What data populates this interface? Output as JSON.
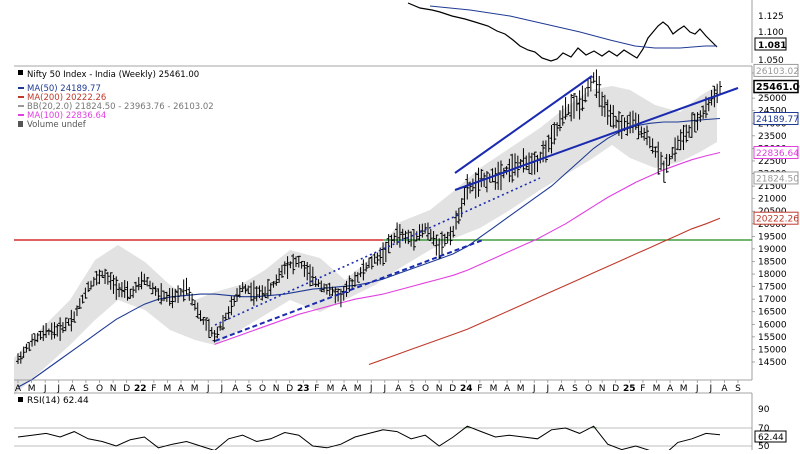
{
  "colors": {
    "price": "#000000",
    "ma50": "#1f3a93",
    "ma200": "#c0392b",
    "ma100": "#e040e0",
    "bb_band": "#d8d8d8",
    "trendline": "#1a2bb0",
    "horizontal_red": "#cc0000",
    "horizontal_green": "#1f8a1f",
    "rsi_fill": "#3c7a3c"
  },
  "top_panel": {
    "tick_labels": [
      "1.125",
      "1.100",
      "1.081",
      "1.050"
    ],
    "highlight_label": "1.081"
  },
  "legend": {
    "title": "Nifty 50 Index - India (Weekly) 25461.00",
    "items": [
      {
        "label": "MA(50) 24189.77",
        "color": "#1f3a93"
      },
      {
        "label": "MA(200) 20222.26",
        "color": "#c0392b"
      },
      {
        "label": "BB(20,2.0) 21824.50 - 23963.76 - 26103.02",
        "color": "#999999"
      },
      {
        "label": "MA(100) 22836.64",
        "color": "#e040e0"
      },
      {
        "label": "Volume undef",
        "color": "#555555"
      }
    ]
  },
  "right_axis": {
    "ticks": [
      "26000",
      "25000",
      "24500",
      "24000",
      "23500",
      "23000",
      "22500",
      "22000",
      "21500",
      "21000",
      "20500",
      "20000",
      "19500",
      "19000",
      "18500",
      "18000",
      "17500",
      "17000",
      "16500",
      "16000",
      "15500",
      "15000",
      "14500"
    ],
    "badges": [
      {
        "label": "26103.02",
        "value": 26103.02,
        "style": "outline",
        "color": "#999999"
      },
      {
        "label": "25461.00",
        "value": 25461.0,
        "style": "bold",
        "color": "#000000"
      },
      {
        "label": "24189.77",
        "value": 24189.77,
        "style": "outline",
        "color": "#1f3a93"
      },
      {
        "label": "22836.64",
        "value": 22836.64,
        "style": "outline",
        "color": "#e040e0"
      },
      {
        "label": "21824.50",
        "value": 21824.5,
        "style": "outline",
        "color": "#999999"
      },
      {
        "label": "20222.26",
        "value": 20222.26,
        "style": "outline",
        "color": "#c0392b"
      }
    ]
  },
  "x_axis": {
    "labels": [
      "A",
      "M",
      "J",
      "J",
      "A",
      "S",
      "O",
      "N",
      "D",
      "22",
      "F",
      "M",
      "A",
      "M",
      "J",
      "J",
      "A",
      "S",
      "O",
      "N",
      "D",
      "23",
      "F",
      "M",
      "A",
      "M",
      "J",
      "J",
      "A",
      "S",
      "O",
      "N",
      "D",
      "24",
      "F",
      "M",
      "A",
      "M",
      "J",
      "J",
      "A",
      "S",
      "O",
      "N",
      "D",
      "25",
      "F",
      "M",
      "A",
      "M",
      "J",
      "J",
      "A",
      "S"
    ]
  },
  "rsi_panel": {
    "legend": "RSI(14) 62.44",
    "ticks": [
      "90",
      "70",
      "62.44",
      "50"
    ],
    "value_label": "62.44"
  },
  "chart_data": {
    "type": "line",
    "title": "Nifty 50 Index - India (Weekly) 25461.00",
    "x": [
      "2021-04",
      "2021-05",
      "2021-06",
      "2021-07",
      "2021-08",
      "2021-09",
      "2021-10",
      "2021-11",
      "2021-12",
      "2022-01",
      "2022-02",
      "2022-03",
      "2022-04",
      "2022-05",
      "2022-06",
      "2022-07",
      "2022-08",
      "2022-09",
      "2022-10",
      "2022-11",
      "2022-12",
      "2023-01",
      "2023-02",
      "2023-03",
      "2023-04",
      "2023-05",
      "2023-06",
      "2023-07",
      "2023-08",
      "2023-09",
      "2023-10",
      "2023-11",
      "2023-12",
      "2024-01",
      "2024-02",
      "2024-03",
      "2024-04",
      "2024-05",
      "2024-06",
      "2024-07",
      "2024-08",
      "2024-09",
      "2024-10",
      "2024-11",
      "2024-12",
      "2025-01",
      "2025-02",
      "2025-03",
      "2025-04",
      "2025-05",
      "2025-06"
    ],
    "ylim": [
      14000,
      26500
    ],
    "series": [
      {
        "name": "Nifty 50 Index - India (Weekly)",
        "values": [
          14600,
          15300,
          15700,
          15800,
          16300,
          17500,
          18000,
          17500,
          17200,
          17800,
          17200,
          17000,
          17500,
          16300,
          15500,
          16500,
          17500,
          17200,
          17400,
          18300,
          18500,
          17800,
          17400,
          17100,
          17800,
          18400,
          18800,
          19600,
          19400,
          19800,
          19100,
          19700,
          21400,
          21700,
          21900,
          22200,
          22400,
          22500,
          23300,
          24500,
          24800,
          25800,
          24300,
          23900,
          24000,
          23300,
          22200,
          23200,
          23800,
          24600,
          25461
        ]
      },
      {
        "name": "MA(50) 24189.77",
        "values": [
          13500,
          13800,
          14200,
          14600,
          15000,
          15400,
          15800,
          16200,
          16500,
          16800,
          17000,
          17100,
          17150,
          17200,
          17200,
          17150,
          17100,
          17100,
          17150,
          17200,
          17300,
          17400,
          17450,
          17500,
          17550,
          17650,
          17800,
          18000,
          18200,
          18400,
          18600,
          18800,
          19100,
          19500,
          19900,
          20300,
          20700,
          21100,
          21500,
          22000,
          22500,
          23000,
          23400,
          23700,
          23900,
          24000,
          24050,
          24050,
          24100,
          24150,
          24189.77
        ]
      },
      {
        "name": "MA(100) 22836.64",
        "values": [
          null,
          null,
          null,
          null,
          null,
          null,
          null,
          null,
          null,
          null,
          null,
          null,
          null,
          null,
          15200,
          15400,
          15600,
          15800,
          16000,
          16200,
          16400,
          16550,
          16700,
          16850,
          17000,
          17100,
          17200,
          17350,
          17500,
          17650,
          17800,
          17950,
          18150,
          18400,
          18650,
          18900,
          19150,
          19400,
          19700,
          20000,
          20350,
          20700,
          21050,
          21350,
          21650,
          21900,
          22150,
          22350,
          22550,
          22700,
          22836.64
        ]
      },
      {
        "name": "MA(200) 20222.26",
        "values": [
          null,
          null,
          null,
          null,
          null,
          null,
          null,
          null,
          null,
          null,
          null,
          null,
          null,
          null,
          null,
          null,
          null,
          null,
          null,
          null,
          null,
          null,
          null,
          null,
          null,
          14400,
          14600,
          14800,
          15000,
          15200,
          15400,
          15600,
          15800,
          16050,
          16300,
          16550,
          16800,
          17050,
          17300,
          17550,
          17800,
          18050,
          18300,
          18550,
          18800,
          19050,
          19300,
          19550,
          19800,
          20000,
          20222.26
        ]
      }
    ],
    "bollinger": {
      "label": "BB(20,2.0) 21824.50 - 23963.76 - 26103.02",
      "lower": 21824.5,
      "middle": 23963.76,
      "upper": 26103.02
    },
    "horizontal_lines": [
      {
        "value": 18700,
        "color": "#cc0000"
      },
      {
        "value": 18700,
        "color": "#1f8a1f"
      }
    ],
    "rsi": {
      "name": "RSI(14) 62.44",
      "ylim": [
        40,
        100
      ],
      "levels": [
        70,
        50
      ],
      "values": [
        60,
        62,
        64,
        60,
        66,
        58,
        55,
        50,
        57,
        60,
        48,
        52,
        55,
        50,
        45,
        58,
        62,
        55,
        58,
        65,
        62,
        50,
        48,
        52,
        60,
        64,
        68,
        66,
        58,
        62,
        50,
        60,
        72,
        66,
        60,
        62,
        60,
        58,
        68,
        70,
        64,
        72,
        52,
        46,
        50,
        45,
        40,
        54,
        58,
        64,
        62.44
      ]
    },
    "grid": false,
    "legend_position": "top-left"
  }
}
